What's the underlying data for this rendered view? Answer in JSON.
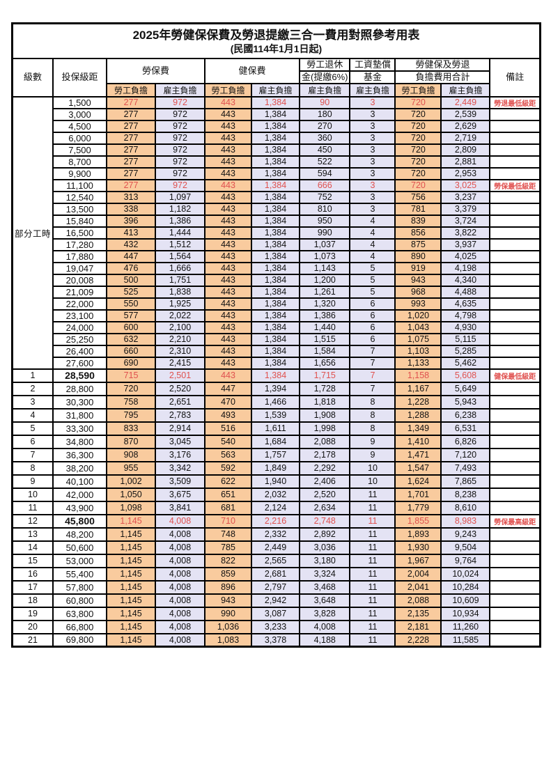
{
  "title": "2025年勞健保保費及勞退提繳三合一費用對照參考用表",
  "subtitle": "(民國114年1月1日起)",
  "colors": {
    "employee_fill": "#f9cb9e",
    "employer_fill": "#e4e3f4",
    "highlight_text": "#e0514f",
    "border": "#000000"
  },
  "header": {
    "level": "級數",
    "bracket": "投保級距",
    "labor_insurance": "勞保費",
    "health_insurance": "健保費",
    "pension_line1": "勞工退休",
    "pension_line2": "金(提繳6%)",
    "wage_fund_line1": "工資墊償",
    "wage_fund_line2": "基金",
    "total_line1": "勞健保及勞退",
    "total_line2": "負擔費用合計",
    "note": "備註",
    "employee_burden": "勞工負擔",
    "employer_burden": "雇主負擔"
  },
  "part_time_label": "部分工時",
  "part_time_rowspan": 23,
  "value_column_payers": [
    "employee",
    "employer",
    "employee",
    "employer",
    "employer",
    "employer",
    "employee",
    "employer"
  ],
  "rows": [
    {
      "level": "",
      "bracket": "1,500",
      "values": [
        "277",
        "972",
        "443",
        "1,384",
        "90",
        "3",
        "720",
        "2,449"
      ],
      "note": "勞退最低級距",
      "red": true,
      "bold": false
    },
    {
      "level": "",
      "bracket": "3,000",
      "values": [
        "277",
        "972",
        "443",
        "1,384",
        "180",
        "3",
        "720",
        "2,539"
      ],
      "note": "",
      "red": false,
      "bold": false
    },
    {
      "level": "",
      "bracket": "4,500",
      "values": [
        "277",
        "972",
        "443",
        "1,384",
        "270",
        "3",
        "720",
        "2,629"
      ],
      "note": "",
      "red": false,
      "bold": false
    },
    {
      "level": "",
      "bracket": "6,000",
      "values": [
        "277",
        "972",
        "443",
        "1,384",
        "360",
        "3",
        "720",
        "2,719"
      ],
      "note": "",
      "red": false,
      "bold": false
    },
    {
      "level": "",
      "bracket": "7,500",
      "values": [
        "277",
        "972",
        "443",
        "1,384",
        "450",
        "3",
        "720",
        "2,809"
      ],
      "note": "",
      "red": false,
      "bold": false
    },
    {
      "level": "",
      "bracket": "8,700",
      "values": [
        "277",
        "972",
        "443",
        "1,384",
        "522",
        "3",
        "720",
        "2,881"
      ],
      "note": "",
      "red": false,
      "bold": false
    },
    {
      "level": "",
      "bracket": "9,900",
      "values": [
        "277",
        "972",
        "443",
        "1,384",
        "594",
        "3",
        "720",
        "2,953"
      ],
      "note": "",
      "red": false,
      "bold": false
    },
    {
      "level": "",
      "bracket": "11,100",
      "values": [
        "277",
        "972",
        "443",
        "1,384",
        "666",
        "3",
        "720",
        "3,025"
      ],
      "note": "勞保最低級距",
      "red": true,
      "bold": false
    },
    {
      "level": "",
      "bracket": "12,540",
      "values": [
        "313",
        "1,097",
        "443",
        "1,384",
        "752",
        "3",
        "756",
        "3,237"
      ],
      "note": "",
      "red": false,
      "bold": false
    },
    {
      "level": "",
      "bracket": "13,500",
      "values": [
        "338",
        "1,182",
        "443",
        "1,384",
        "810",
        "3",
        "781",
        "3,379"
      ],
      "note": "",
      "red": false,
      "bold": false
    },
    {
      "level": "",
      "bracket": "15,840",
      "values": [
        "396",
        "1,386",
        "443",
        "1,384",
        "950",
        "4",
        "839",
        "3,724"
      ],
      "note": "",
      "red": false,
      "bold": false
    },
    {
      "level": "",
      "bracket": "16,500",
      "values": [
        "413",
        "1,444",
        "443",
        "1,384",
        "990",
        "4",
        "856",
        "3,822"
      ],
      "note": "",
      "red": false,
      "bold": false
    },
    {
      "level": "",
      "bracket": "17,280",
      "values": [
        "432",
        "1,512",
        "443",
        "1,384",
        "1,037",
        "4",
        "875",
        "3,937"
      ],
      "note": "",
      "red": false,
      "bold": false
    },
    {
      "level": "",
      "bracket": "17,880",
      "values": [
        "447",
        "1,564",
        "443",
        "1,384",
        "1,073",
        "4",
        "890",
        "4,025"
      ],
      "note": "",
      "red": false,
      "bold": false
    },
    {
      "level": "",
      "bracket": "19,047",
      "values": [
        "476",
        "1,666",
        "443",
        "1,384",
        "1,143",
        "5",
        "919",
        "4,198"
      ],
      "note": "",
      "red": false,
      "bold": false
    },
    {
      "level": "",
      "bracket": "20,008",
      "values": [
        "500",
        "1,751",
        "443",
        "1,384",
        "1,200",
        "5",
        "943",
        "4,340"
      ],
      "note": "",
      "red": false,
      "bold": false
    },
    {
      "level": "",
      "bracket": "21,009",
      "values": [
        "525",
        "1,838",
        "443",
        "1,384",
        "1,261",
        "5",
        "968",
        "4,488"
      ],
      "note": "",
      "red": false,
      "bold": false
    },
    {
      "level": "",
      "bracket": "22,000",
      "values": [
        "550",
        "1,925",
        "443",
        "1,384",
        "1,320",
        "6",
        "993",
        "4,635"
      ],
      "note": "",
      "red": false,
      "bold": false
    },
    {
      "level": "",
      "bracket": "23,100",
      "values": [
        "577",
        "2,022",
        "443",
        "1,384",
        "1,386",
        "6",
        "1,020",
        "4,798"
      ],
      "note": "",
      "red": false,
      "bold": false
    },
    {
      "level": "",
      "bracket": "24,000",
      "values": [
        "600",
        "2,100",
        "443",
        "1,384",
        "1,440",
        "6",
        "1,043",
        "4,930"
      ],
      "note": "",
      "red": false,
      "bold": false
    },
    {
      "level": "",
      "bracket": "25,250",
      "values": [
        "632",
        "2,210",
        "443",
        "1,384",
        "1,515",
        "6",
        "1,075",
        "5,115"
      ],
      "note": "",
      "red": false,
      "bold": false
    },
    {
      "level": "",
      "bracket": "26,400",
      "values": [
        "660",
        "2,310",
        "443",
        "1,384",
        "1,584",
        "7",
        "1,103",
        "5,285"
      ],
      "note": "",
      "red": false,
      "bold": false
    },
    {
      "level": "",
      "bracket": "27,600",
      "values": [
        "690",
        "2,415",
        "443",
        "1,384",
        "1,656",
        "7",
        "1,133",
        "5,462"
      ],
      "note": "",
      "red": false,
      "bold": false
    },
    {
      "level": "1",
      "bracket": "28,590",
      "values": [
        "715",
        "2,501",
        "443",
        "1,384",
        "1,715",
        "7",
        "1,158",
        "5,608"
      ],
      "note": "健保最低級距",
      "red": true,
      "bold": true
    },
    {
      "level": "2",
      "bracket": "28,800",
      "values": [
        "720",
        "2,520",
        "447",
        "1,394",
        "1,728",
        "7",
        "1,167",
        "5,649"
      ],
      "note": "",
      "red": false,
      "bold": false
    },
    {
      "level": "3",
      "bracket": "30,300",
      "values": [
        "758",
        "2,651",
        "470",
        "1,466",
        "1,818",
        "8",
        "1,228",
        "5,943"
      ],
      "note": "",
      "red": false,
      "bold": false
    },
    {
      "level": "4",
      "bracket": "31,800",
      "values": [
        "795",
        "2,783",
        "493",
        "1,539",
        "1,908",
        "8",
        "1,288",
        "6,238"
      ],
      "note": "",
      "red": false,
      "bold": false
    },
    {
      "level": "5",
      "bracket": "33,300",
      "values": [
        "833",
        "2,914",
        "516",
        "1,611",
        "1,998",
        "8",
        "1,349",
        "6,531"
      ],
      "note": "",
      "red": false,
      "bold": false
    },
    {
      "level": "6",
      "bracket": "34,800",
      "values": [
        "870",
        "3,045",
        "540",
        "1,684",
        "2,088",
        "9",
        "1,410",
        "6,826"
      ],
      "note": "",
      "red": false,
      "bold": false
    },
    {
      "level": "7",
      "bracket": "36,300",
      "values": [
        "908",
        "3,176",
        "563",
        "1,757",
        "2,178",
        "9",
        "1,471",
        "7,120"
      ],
      "note": "",
      "red": false,
      "bold": false
    },
    {
      "level": "8",
      "bracket": "38,200",
      "values": [
        "955",
        "3,342",
        "592",
        "1,849",
        "2,292",
        "10",
        "1,547",
        "7,493"
      ],
      "note": "",
      "red": false,
      "bold": false
    },
    {
      "level": "9",
      "bracket": "40,100",
      "values": [
        "1,002",
        "3,509",
        "622",
        "1,940",
        "2,406",
        "10",
        "1,624",
        "7,865"
      ],
      "note": "",
      "red": false,
      "bold": false
    },
    {
      "level": "10",
      "bracket": "42,000",
      "values": [
        "1,050",
        "3,675",
        "651",
        "2,032",
        "2,520",
        "11",
        "1,701",
        "8,238"
      ],
      "note": "",
      "red": false,
      "bold": false
    },
    {
      "level": "11",
      "bracket": "43,900",
      "values": [
        "1,098",
        "3,841",
        "681",
        "2,124",
        "2,634",
        "11",
        "1,779",
        "8,610"
      ],
      "note": "",
      "red": false,
      "bold": false
    },
    {
      "level": "12",
      "bracket": "45,800",
      "values": [
        "1,145",
        "4,008",
        "710",
        "2,216",
        "2,748",
        "11",
        "1,855",
        "8,983"
      ],
      "note": "勞保最高級距",
      "red": true,
      "bold": true
    },
    {
      "level": "13",
      "bracket": "48,200",
      "values": [
        "1,145",
        "4,008",
        "748",
        "2,332",
        "2,892",
        "11",
        "1,893",
        "9,243"
      ],
      "note": "",
      "red": false,
      "bold": false
    },
    {
      "level": "14",
      "bracket": "50,600",
      "values": [
        "1,145",
        "4,008",
        "785",
        "2,449",
        "3,036",
        "11",
        "1,930",
        "9,504"
      ],
      "note": "",
      "red": false,
      "bold": false
    },
    {
      "level": "15",
      "bracket": "53,000",
      "values": [
        "1,145",
        "4,008",
        "822",
        "2,565",
        "3,180",
        "11",
        "1,967",
        "9,764"
      ],
      "note": "",
      "red": false,
      "bold": false
    },
    {
      "level": "16",
      "bracket": "55,400",
      "values": [
        "1,145",
        "4,008",
        "859",
        "2,681",
        "3,324",
        "11",
        "2,004",
        "10,024"
      ],
      "note": "",
      "red": false,
      "bold": false
    },
    {
      "level": "17",
      "bracket": "57,800",
      "values": [
        "1,145",
        "4,008",
        "896",
        "2,797",
        "3,468",
        "11",
        "2,041",
        "10,284"
      ],
      "note": "",
      "red": false,
      "bold": false
    },
    {
      "level": "18",
      "bracket": "60,800",
      "values": [
        "1,145",
        "4,008",
        "943",
        "2,942",
        "3,648",
        "11",
        "2,088",
        "10,609"
      ],
      "note": "",
      "red": false,
      "bold": false
    },
    {
      "level": "19",
      "bracket": "63,800",
      "values": [
        "1,145",
        "4,008",
        "990",
        "3,087",
        "3,828",
        "11",
        "2,135",
        "10,934"
      ],
      "note": "",
      "red": false,
      "bold": false
    },
    {
      "level": "20",
      "bracket": "66,800",
      "values": [
        "1,145",
        "4,008",
        "1,036",
        "3,233",
        "4,008",
        "11",
        "2,181",
        "11,260"
      ],
      "note": "",
      "red": false,
      "bold": false
    },
    {
      "level": "21",
      "bracket": "69,800",
      "values": [
        "1,145",
        "4,008",
        "1,083",
        "3,378",
        "4,188",
        "11",
        "2,228",
        "11,585"
      ],
      "note": "",
      "red": false,
      "bold": false
    }
  ]
}
